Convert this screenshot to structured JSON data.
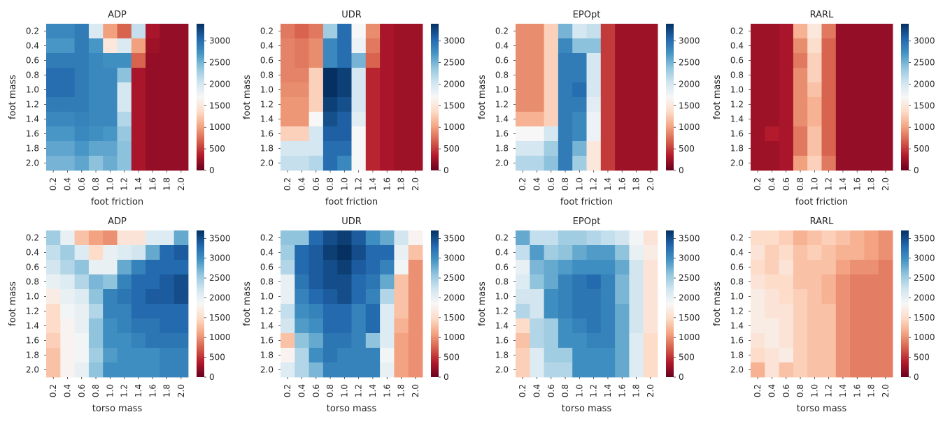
{
  "figure": {
    "colormap": "RdBu",
    "colormap_stops": [
      "#67001f",
      "#b2182b",
      "#d6604d",
      "#f4a582",
      "#fddbc7",
      "#f7f7f7",
      "#d1e5f0",
      "#92c5de",
      "#4393c3",
      "#2166ac",
      "#053061"
    ]
  },
  "chart_data": [
    {
      "type": "heatmap",
      "title": "ADP",
      "xlabel": "foot friction",
      "ylabel": "foot mass",
      "x_ticks": [
        "0.2",
        "0.4",
        "0.6",
        "0.8",
        "1.0",
        "1.2",
        "1.4",
        "1.6",
        "1.8",
        "2.0"
      ],
      "y_ticks": [
        "0.2",
        "0.4",
        "0.6",
        "0.8",
        "1.0",
        "1.2",
        "1.4",
        "1.6",
        "1.8",
        "2.0"
      ],
      "vmin": 0,
      "vmax": 3400,
      "colorbar_ticks": [
        "0",
        "500",
        "1000",
        "1500",
        "2000",
        "2500",
        "3000"
      ],
      "values": [
        [
          2800,
          2800,
          2900,
          1950,
          1000,
          700,
          2100,
          300,
          200,
          200
        ],
        [
          2700,
          2700,
          2900,
          2700,
          1500,
          1950,
          1000,
          250,
          200,
          200
        ],
        [
          2900,
          2900,
          2900,
          2800,
          2750,
          2750,
          700,
          200,
          200,
          200
        ],
        [
          3000,
          3000,
          2900,
          2800,
          2800,
          2400,
          300,
          200,
          200,
          200
        ],
        [
          3000,
          3000,
          2900,
          2800,
          2800,
          2000,
          300,
          200,
          200,
          200
        ],
        [
          2900,
          2900,
          2900,
          2800,
          2800,
          2000,
          300,
          200,
          200,
          200
        ],
        [
          2800,
          2800,
          2850,
          2800,
          2800,
          2200,
          300,
          200,
          200,
          200
        ],
        [
          2700,
          2700,
          2800,
          2750,
          2700,
          2350,
          300,
          200,
          200,
          200
        ],
        [
          2600,
          2600,
          2700,
          2600,
          2600,
          2400,
          300,
          200,
          200,
          200
        ],
        [
          2500,
          2500,
          2600,
          2400,
          2550,
          2400,
          300,
          200,
          200,
          200
        ]
      ]
    },
    {
      "type": "heatmap",
      "title": "UDR",
      "xlabel": "foot friction",
      "ylabel": "foot mass",
      "x_ticks": [
        "0.2",
        "0.4",
        "0.6",
        "0.8",
        "1.0",
        "1.2",
        "1.4",
        "1.6",
        "1.8",
        "2.0"
      ],
      "y_ticks": [
        "0.2",
        "0.4",
        "0.6",
        "0.8",
        "1.0",
        "1.2",
        "1.4",
        "1.6",
        "1.8",
        "2.0"
      ],
      "vmin": 0,
      "vmax": 3400,
      "colorbar_ticks": [
        "0",
        "500",
        "1000",
        "1500",
        "2000",
        "2500",
        "3000"
      ],
      "values": [
        [
          800,
          700,
          800,
          2300,
          3000,
          1700,
          900,
          300,
          250,
          250
        ],
        [
          850,
          800,
          900,
          2800,
          3000,
          1800,
          800,
          300,
          250,
          250
        ],
        [
          850,
          800,
          900,
          2800,
          3000,
          2500,
          700,
          300,
          250,
          250
        ],
        [
          850,
          850,
          1300,
          3400,
          3300,
          2000,
          400,
          300,
          250,
          250
        ],
        [
          900,
          900,
          1300,
          3400,
          3300,
          2000,
          400,
          300,
          250,
          250
        ],
        [
          950,
          950,
          1300,
          3300,
          3200,
          2000,
          400,
          300,
          250,
          250
        ],
        [
          950,
          950,
          1700,
          3200,
          3100,
          1900,
          400,
          300,
          250,
          250
        ],
        [
          1300,
          1300,
          2000,
          3100,
          3100,
          1700,
          400,
          300,
          250,
          250
        ],
        [
          2000,
          2000,
          2000,
          3000,
          3000,
          1700,
          400,
          300,
          250,
          250
        ],
        [
          2100,
          2100,
          2200,
          3000,
          2800,
          1700,
          400,
          300,
          250,
          250
        ]
      ]
    },
    {
      "type": "heatmap",
      "title": "EPOpt",
      "xlabel": "foot friction",
      "ylabel": "foot mass",
      "x_ticks": [
        "0.2",
        "0.4",
        "0.6",
        "0.8",
        "1.0",
        "1.2",
        "1.4",
        "1.6",
        "1.8",
        "2.0"
      ],
      "y_ticks": [
        "0.2",
        "0.4",
        "0.6",
        "0.8",
        "1.0",
        "1.2",
        "1.4",
        "1.6",
        "1.8",
        "2.0"
      ],
      "vmin": 0,
      "vmax": 3400,
      "colorbar_ticks": [
        "0",
        "500",
        "1000",
        "1500",
        "2000",
        "2500",
        "3000"
      ],
      "values": [
        [
          900,
          900,
          1300,
          2500,
          2000,
          2100,
          500,
          250,
          250,
          250
        ],
        [
          900,
          900,
          1300,
          2800,
          2400,
          2400,
          500,
          250,
          250,
          250
        ],
        [
          900,
          900,
          1300,
          2900,
          2900,
          2000,
          500,
          250,
          250,
          250
        ],
        [
          900,
          900,
          1300,
          2900,
          2900,
          2000,
          500,
          250,
          250,
          250
        ],
        [
          900,
          900,
          1300,
          2900,
          3000,
          2000,
          500,
          250,
          250,
          250
        ],
        [
          900,
          900,
          1300,
          2900,
          2900,
          1900,
          500,
          250,
          250,
          250
        ],
        [
          1100,
          1100,
          1300,
          2900,
          2800,
          1800,
          500,
          250,
          250,
          250
        ],
        [
          1700,
          1700,
          2000,
          2900,
          2800,
          1800,
          500,
          250,
          250,
          250
        ],
        [
          2000,
          2000,
          2300,
          2900,
          2500,
          1500,
          500,
          250,
          250,
          250
        ],
        [
          2200,
          2200,
          2400,
          2900,
          2300,
          1500,
          500,
          250,
          250,
          250
        ]
      ]
    },
    {
      "type": "heatmap",
      "title": "RARL",
      "xlabel": "foot friction",
      "ylabel": "foot mass",
      "x_ticks": [
        "0.2",
        "0.4",
        "0.6",
        "0.8",
        "1.0",
        "1.2",
        "1.4",
        "1.6",
        "1.8",
        "2.0"
      ],
      "y_ticks": [
        "0.2",
        "0.4",
        "0.6",
        "0.8",
        "1.0",
        "1.2",
        "1.4",
        "1.6",
        "1.8",
        "2.0"
      ],
      "vmin": 0,
      "vmax": 3400,
      "colorbar_ticks": [
        "0",
        "500",
        "1000",
        "1500",
        "2000",
        "2500",
        "3000"
      ],
      "values": [
        [
          250,
          250,
          300,
          1100,
          1500,
          800,
          200,
          200,
          200,
          200
        ],
        [
          250,
          250,
          300,
          900,
          1400,
          700,
          200,
          200,
          200,
          200
        ],
        [
          250,
          250,
          300,
          800,
          1300,
          700,
          200,
          200,
          200,
          200
        ],
        [
          250,
          250,
          300,
          900,
          1300,
          700,
          200,
          200,
          200,
          200
        ],
        [
          250,
          250,
          300,
          900,
          1200,
          700,
          200,
          200,
          200,
          200
        ],
        [
          250,
          250,
          300,
          900,
          1100,
          700,
          200,
          200,
          200,
          200
        ],
        [
          250,
          250,
          300,
          900,
          1100,
          700,
          200,
          200,
          200,
          200
        ],
        [
          250,
          350,
          300,
          800,
          1200,
          700,
          200,
          200,
          200,
          200
        ],
        [
          250,
          250,
          300,
          800,
          1200,
          700,
          200,
          200,
          200,
          200
        ],
        [
          250,
          250,
          300,
          1000,
          1300,
          800,
          200,
          200,
          200,
          200
        ]
      ]
    },
    {
      "type": "heatmap",
      "title": "ADP",
      "xlabel": "torso mass",
      "ylabel": "foot mass",
      "x_ticks": [
        "0.2",
        "0.4",
        "0.6",
        "0.8",
        "1.0",
        "1.2",
        "1.4",
        "1.6",
        "1.8",
        "2.0"
      ],
      "y_ticks": [
        "0.2",
        "0.4",
        "0.6",
        "0.8",
        "1.0",
        "1.2",
        "1.4",
        "1.6",
        "1.8",
        "2.0"
      ],
      "vmin": 0,
      "vmax": 3700,
      "colorbar_ticks": [
        "0",
        "500",
        "1000",
        "1500",
        "2000",
        "2500",
        "3000",
        "3500"
      ],
      "values": [
        [
          2500,
          2000,
          1300,
          1100,
          1000,
          1600,
          1600,
          2100,
          2100,
          2800
        ],
        [
          2300,
          2500,
          2100,
          1500,
          2000,
          2100,
          2200,
          2800,
          3300,
          3400
        ],
        [
          2200,
          2400,
          2600,
          2000,
          2000,
          2800,
          3100,
          3300,
          3300,
          3300
        ],
        [
          2000,
          2100,
          2400,
          2700,
          2600,
          3100,
          3300,
          3300,
          3400,
          3500
        ],
        [
          1700,
          2000,
          2100,
          2600,
          3100,
          3200,
          3300,
          3400,
          3400,
          3500
        ],
        [
          1500,
          1900,
          2000,
          2400,
          3100,
          3100,
          3300,
          3300,
          3300,
          3300
        ],
        [
          1500,
          1800,
          2000,
          2600,
          3000,
          3100,
          3200,
          3200,
          3300,
          3300
        ],
        [
          1400,
          1800,
          1900,
          2600,
          3000,
          3000,
          3100,
          3200,
          3200,
          3200
        ],
        [
          1300,
          1800,
          1900,
          2500,
          2900,
          3000,
          3000,
          3000,
          3100,
          3100
        ],
        [
          1300,
          1800,
          2000,
          2600,
          3000,
          3000,
          3000,
          3000,
          3100,
          3100
        ]
      ]
    },
    {
      "type": "heatmap",
      "title": "UDR",
      "xlabel": "torso mass",
      "ylabel": "foot mass",
      "x_ticks": [
        "0.2",
        "0.4",
        "0.6",
        "0.8",
        "1.0",
        "1.2",
        "1.4",
        "1.6",
        "1.8",
        "2.0"
      ],
      "y_ticks": [
        "0.2",
        "0.4",
        "0.6",
        "0.8",
        "1.0",
        "1.2",
        "1.4",
        "1.6",
        "1.8",
        "2.0"
      ],
      "vmin": 0,
      "vmax": 3700,
      "colorbar_ticks": [
        "0",
        "500",
        "1000",
        "1500",
        "2000",
        "2500",
        "3000",
        "3500"
      ],
      "values": [
        [
          2600,
          2600,
          3300,
          3500,
          3600,
          3400,
          3000,
          2800,
          2200,
          1800
        ],
        [
          2500,
          3300,
          3400,
          3600,
          3700,
          3500,
          3300,
          3300,
          2000,
          1300
        ],
        [
          2400,
          3300,
          3400,
          3500,
          3600,
          3400,
          3300,
          3100,
          1900,
          1000
        ],
        [
          2000,
          3200,
          3400,
          3500,
          3500,
          3300,
          3200,
          2800,
          1300,
          1000
        ],
        [
          2000,
          3100,
          3300,
          3400,
          3500,
          3300,
          3100,
          2400,
          1300,
          1000
        ],
        [
          2300,
          3000,
          3100,
          3300,
          3300,
          3100,
          3300,
          2100,
          1300,
          1000
        ],
        [
          2200,
          2900,
          3000,
          3300,
          3300,
          3100,
          3300,
          2100,
          1200,
          1000
        ],
        [
          1300,
          2600,
          2800,
          3200,
          3200,
          3100,
          2600,
          2100,
          1100,
          1000
        ],
        [
          1800,
          2400,
          3000,
          3200,
          3100,
          3100,
          3100,
          1900,
          1100,
          1000
        ],
        [
          2100,
          2400,
          2700,
          3100,
          3100,
          3100,
          3100,
          2000,
          1100,
          1000
        ]
      ]
    },
    {
      "type": "heatmap",
      "title": "EPOpt",
      "xlabel": "torso mass",
      "ylabel": "foot mass",
      "x_ticks": [
        "0.2",
        "0.4",
        "0.6",
        "0.8",
        "1.0",
        "1.2",
        "1.4",
        "1.6",
        "1.8",
        "2.0"
      ],
      "y_ticks": [
        "0.2",
        "0.4",
        "0.6",
        "0.8",
        "1.0",
        "1.2",
        "1.4",
        "1.6",
        "1.8",
        "2.0"
      ],
      "vmin": 0,
      "vmax": 3700,
      "colorbar_ticks": [
        "0",
        "500",
        "1000",
        "1500",
        "2000",
        "2500",
        "3000",
        "3500"
      ],
      "values": [
        [
          2800,
          2300,
          2300,
          2500,
          2500,
          2400,
          2300,
          2200,
          1900,
          1600
        ],
        [
          2300,
          2900,
          2500,
          2600,
          2800,
          2900,
          2900,
          2600,
          2000,
          1700
        ],
        [
          2000,
          2700,
          2800,
          2900,
          3000,
          3000,
          3000,
          2800,
          2200,
          1600
        ],
        [
          2100,
          2600,
          2800,
          3100,
          3200,
          3300,
          3100,
          2700,
          2200,
          1600
        ],
        [
          2200,
          2200,
          3000,
          3100,
          3200,
          3200,
          3100,
          2700,
          2200,
          1600
        ],
        [
          2400,
          2200,
          3000,
          3100,
          3200,
          3200,
          3100,
          2800,
          2200,
          1600
        ],
        [
          1500,
          2400,
          2500,
          3000,
          3100,
          3200,
          3100,
          2800,
          2200,
          1600
        ],
        [
          1300,
          2400,
          2500,
          3000,
          3000,
          3100,
          3100,
          2800,
          2100,
          1500
        ],
        [
          1400,
          2100,
          2500,
          2500,
          3000,
          3000,
          3000,
          2800,
          2100,
          1500
        ],
        [
          1400,
          2100,
          2400,
          2400,
          3000,
          3000,
          3000,
          2800,
          2100,
          1500
        ]
      ]
    },
    {
      "type": "heatmap",
      "title": "RARL",
      "xlabel": "torso mass",
      "ylabel": "foot mass",
      "x_ticks": [
        "0.2",
        "0.4",
        "0.6",
        "0.8",
        "1.0",
        "1.2",
        "1.4",
        "1.6",
        "1.8",
        "2.0"
      ],
      "y_ticks": [
        "0.2",
        "0.4",
        "0.6",
        "0.8",
        "1.0",
        "1.2",
        "1.4",
        "1.6",
        "1.8",
        "2.0"
      ],
      "vmin": 0,
      "vmax": 3700,
      "colorbar_ticks": [
        "0",
        "500",
        "1000",
        "1500",
        "2000",
        "2500",
        "3000",
        "3500"
      ],
      "values": [
        [
          1500,
          1500,
          1400,
          1200,
          1300,
          1400,
          1300,
          1200,
          1100,
          1000
        ],
        [
          1600,
          1400,
          1500,
          1300,
          1400,
          1300,
          1200,
          1200,
          1100,
          1000
        ],
        [
          1500,
          1400,
          1600,
          1300,
          1300,
          1300,
          1100,
          1000,
          1000,
          900
        ],
        [
          1600,
          1500,
          1500,
          1300,
          1300,
          1200,
          1000,
          900,
          900,
          900
        ],
        [
          1700,
          1600,
          1500,
          1400,
          1300,
          1200,
          1000,
          900,
          900,
          900
        ],
        [
          1700,
          1600,
          1600,
          1400,
          1300,
          1300,
          1000,
          900,
          900,
          900
        ],
        [
          1700,
          1700,
          1600,
          1400,
          1300,
          1300,
          1000,
          900,
          900,
          900
        ],
        [
          1600,
          1700,
          1600,
          1400,
          1300,
          1300,
          1000,
          900,
          900,
          900
        ],
        [
          1500,
          1600,
          1700,
          1400,
          1300,
          1300,
          1000,
          900,
          900,
          900
        ],
        [
          1200,
          1600,
          1300,
          1400,
          1300,
          1300,
          1000,
          900,
          900,
          900
        ]
      ]
    }
  ]
}
